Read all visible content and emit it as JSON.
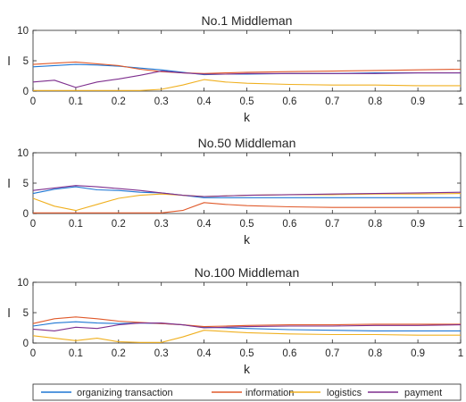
{
  "figure": {
    "legend_placement": "bottom",
    "series_colors": {
      "organizing transaction": "#1f77d4",
      "information": "#e05a2b",
      "logistics": "#f0b020",
      "payment": "#7e2f8e"
    }
  },
  "legend": [
    "organizing transaction",
    "information",
    "logistics",
    "payment"
  ],
  "chart_data": [
    {
      "type": "line",
      "title": "No.1 Middleman",
      "xlabel": "k",
      "ylabel": "l",
      "xlim": [
        0,
        1
      ],
      "ylim": [
        0,
        10
      ],
      "xticks": [
        "0",
        "0.1",
        "0.2",
        "0.3",
        "0.4",
        "0.5",
        "0.6",
        "0.7",
        "0.8",
        "0.9",
        "1"
      ],
      "yticks": [
        "0",
        "5",
        "10"
      ],
      "x": [
        0,
        0.05,
        0.1,
        0.15,
        0.2,
        0.25,
        0.3,
        0.35,
        0.4,
        0.45,
        0.5,
        0.6,
        0.7,
        0.8,
        0.9,
        1.0
      ],
      "series": [
        {
          "name": "organizing transaction",
          "values": [
            4.0,
            4.2,
            4.4,
            4.3,
            4.1,
            3.8,
            3.5,
            3.1,
            2.7,
            2.8,
            2.8,
            2.9,
            2.9,
            3.0,
            3.0,
            3.0
          ]
        },
        {
          "name": "information",
          "values": [
            4.4,
            4.6,
            4.8,
            4.5,
            4.2,
            3.6,
            3.2,
            3.0,
            2.9,
            3.0,
            3.1,
            3.2,
            3.3,
            3.4,
            3.5,
            3.6
          ]
        },
        {
          "name": "logistics",
          "values": [
            0.1,
            0.1,
            0.1,
            0.1,
            0.1,
            0.1,
            0.3,
            1.0,
            1.9,
            1.5,
            1.3,
            1.1,
            1.0,
            1.0,
            0.9,
            0.9
          ]
        },
        {
          "name": "payment",
          "values": [
            1.5,
            1.8,
            0.6,
            1.5,
            2.0,
            2.6,
            3.3,
            3.0,
            2.8,
            2.8,
            2.9,
            2.9,
            2.9,
            2.9,
            3.0,
            3.0
          ]
        }
      ]
    },
    {
      "type": "line",
      "title": "No.50 Middleman",
      "xlabel": "k",
      "ylabel": "l",
      "xlim": [
        0,
        1
      ],
      "ylim": [
        0,
        10
      ],
      "xticks": [
        "0",
        "0.1",
        "0.2",
        "0.3",
        "0.4",
        "0.5",
        "0.6",
        "0.7",
        "0.8",
        "0.9",
        "1"
      ],
      "yticks": [
        "0",
        "5",
        "10"
      ],
      "x": [
        0,
        0.05,
        0.1,
        0.15,
        0.2,
        0.25,
        0.3,
        0.35,
        0.4,
        0.45,
        0.5,
        0.6,
        0.7,
        0.8,
        0.9,
        1.0
      ],
      "series": [
        {
          "name": "organizing transaction",
          "values": [
            3.3,
            4.0,
            4.4,
            3.9,
            3.8,
            3.5,
            3.4,
            3.0,
            2.6,
            2.6,
            2.6,
            2.6,
            2.6,
            2.6,
            2.6,
            2.6
          ]
        },
        {
          "name": "information",
          "values": [
            0.1,
            0.1,
            0.1,
            0.1,
            0.1,
            0.1,
            0.1,
            0.5,
            1.8,
            1.5,
            1.3,
            1.1,
            1.0,
            1.0,
            1.0,
            1.0
          ]
        },
        {
          "name": "logistics",
          "values": [
            2.5,
            1.2,
            0.5,
            1.5,
            2.5,
            3.0,
            3.2,
            3.0,
            2.8,
            2.9,
            3.0,
            3.1,
            3.1,
            3.2,
            3.2,
            3.3
          ]
        },
        {
          "name": "payment",
          "values": [
            3.8,
            4.2,
            4.6,
            4.4,
            4.1,
            3.8,
            3.4,
            3.0,
            2.8,
            2.9,
            3.0,
            3.1,
            3.2,
            3.3,
            3.4,
            3.5
          ]
        }
      ]
    },
    {
      "type": "line",
      "title": "No.100 Middleman",
      "xlabel": "k",
      "ylabel": "l",
      "xlim": [
        0,
        1
      ],
      "ylim": [
        0,
        10
      ],
      "xticks": [
        "0",
        "0.1",
        "0.2",
        "0.3",
        "0.4",
        "0.5",
        "0.6",
        "0.7",
        "0.8",
        "0.9",
        "1"
      ],
      "yticks": [
        "0",
        "5",
        "10"
      ],
      "x": [
        0,
        0.05,
        0.1,
        0.15,
        0.2,
        0.25,
        0.3,
        0.35,
        0.4,
        0.45,
        0.5,
        0.6,
        0.7,
        0.8,
        0.9,
        1.0
      ],
      "series": [
        {
          "name": "organizing transaction",
          "values": [
            2.8,
            3.3,
            3.5,
            3.3,
            3.2,
            3.3,
            3.2,
            3.0,
            2.6,
            2.5,
            2.4,
            2.2,
            2.1,
            2.0,
            2.0,
            2.0
          ]
        },
        {
          "name": "information",
          "values": [
            3.2,
            4.0,
            4.3,
            4.0,
            3.6,
            3.4,
            3.2,
            3.0,
            2.7,
            2.8,
            2.9,
            3.0,
            3.0,
            3.1,
            3.1,
            3.1
          ]
        },
        {
          "name": "logistics",
          "values": [
            1.2,
            0.8,
            0.4,
            0.8,
            0.2,
            0.1,
            0.1,
            1.0,
            2.1,
            1.9,
            1.7,
            1.5,
            1.4,
            1.4,
            1.3,
            1.3
          ]
        },
        {
          "name": "payment",
          "values": [
            2.3,
            2.0,
            2.6,
            2.4,
            3.0,
            3.3,
            3.3,
            3.0,
            2.5,
            2.6,
            2.7,
            2.8,
            2.8,
            2.9,
            2.9,
            3.0
          ]
        }
      ]
    }
  ]
}
